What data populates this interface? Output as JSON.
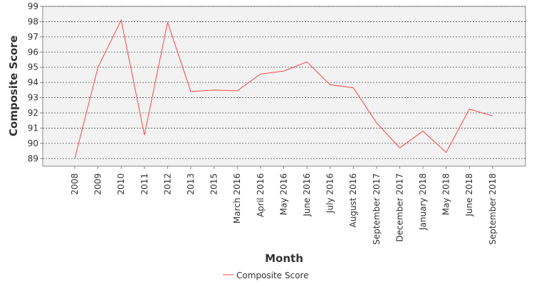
{
  "chart_data": {
    "type": "line",
    "x": [
      "2008",
      "2009",
      "2010",
      "2011",
      "2012",
      "2013",
      "2015",
      "March 2016",
      "April 2016",
      "May 2016",
      "June 2016",
      "July 2016",
      "August 2016",
      "September 2017",
      "December 2017",
      "January 2018",
      "May 2018",
      "June 2018",
      "September 2018"
    ],
    "series": [
      {
        "name": "Composite Score",
        "color": "#ff4444",
        "values": [
          89.0,
          95.0,
          98.1,
          90.55,
          97.95,
          93.4,
          93.5,
          93.45,
          94.55,
          94.75,
          95.35,
          93.85,
          93.65,
          91.35,
          89.7,
          90.8,
          89.4,
          92.25,
          91.8
        ]
      }
    ],
    "xlabel": "Month",
    "ylabel": "Composite Score",
    "ylim": [
      88.5,
      99
    ],
    "yticks": [
      89,
      90,
      91,
      92,
      93,
      94,
      95,
      96,
      97,
      98,
      99
    ],
    "grid": true,
    "legend_position": "bottom-center",
    "plot_background": "#f2f2f2"
  }
}
